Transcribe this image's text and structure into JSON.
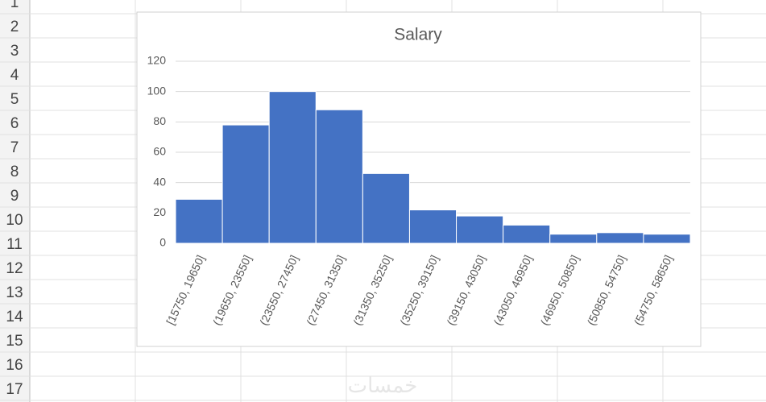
{
  "sheet": {
    "row_numbers": [
      "1",
      "2",
      "3",
      "4",
      "5",
      "6",
      "7",
      "8",
      "9",
      "10",
      "11",
      "12",
      "13",
      "14",
      "15",
      "16",
      "17"
    ]
  },
  "watermark": "خمسات",
  "chart_data": {
    "type": "bar",
    "title": "Salary",
    "categories": [
      "[15750, 19650]",
      "(19650, 23550]",
      "(23550, 27450]",
      "(27450, 31350]",
      "(31350, 35250]",
      "(35250, 39150]",
      "(39150, 43050]",
      "(43050, 46950]",
      "(46950, 50850]",
      "(50850, 54750]",
      "(54750, 58650]"
    ],
    "values": [
      29,
      78,
      100,
      88,
      46,
      22,
      18,
      12,
      6,
      7,
      6
    ],
    "color": "#4472c4",
    "ylim": [
      0,
      120
    ],
    "yticks": [
      0,
      20,
      40,
      60,
      80,
      100,
      120
    ],
    "grid": true
  }
}
